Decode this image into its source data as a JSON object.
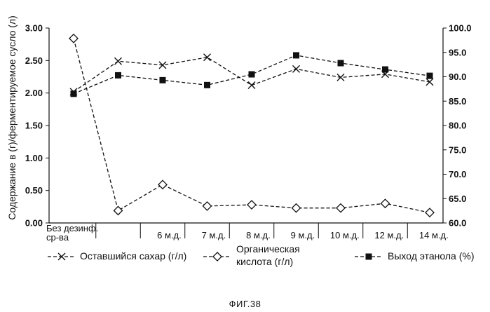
{
  "chart_data": {
    "type": "line",
    "categories": [
      "Без дезинф. ср-ва",
      "",
      "6 м.д.",
      "7 м.д.",
      "8 м.д.",
      "9 м.д.",
      "10 м.д.",
      "12 м.д.",
      "14 м.д."
    ],
    "category_display": [
      [
        "Без дезинф.",
        "ср-ва"
      ],
      [
        ""
      ],
      [
        "6 м.д."
      ],
      [
        "7 м.д."
      ],
      [
        "8 м.д."
      ],
      [
        "9 м.д."
      ],
      [
        "10 м.д."
      ],
      [
        "12 м.д."
      ],
      [
        "14 м.д."
      ]
    ],
    "ylabel": "Содержание в (г)/ферментируемое сусло (л)",
    "ylim": [
      0,
      3
    ],
    "y_ticks": [
      "0.00",
      "0.50",
      "1.00",
      "1.50",
      "2.00",
      "2.50",
      "3.00"
    ],
    "y2lim": [
      60,
      100
    ],
    "y2_ticks": [
      "60.0",
      "65.0",
      "70.0",
      "75.0",
      "80.0",
      "85.0",
      "90.0",
      "95.0",
      "100.0"
    ],
    "series": [
      {
        "name": "Оставшийся сахар (г/л)",
        "axis": "left",
        "marker": "x",
        "values": [
          2.02,
          2.49,
          2.43,
          2.55,
          2.12,
          2.37,
          2.24,
          2.29,
          2.17
        ]
      },
      {
        "name": "Органическая кислота (г/л)",
        "axis": "left",
        "marker": "diamond",
        "values": [
          2.84,
          0.19,
          0.59,
          0.26,
          0.28,
          0.23,
          0.23,
          0.3,
          0.16
        ]
      },
      {
        "name": "Выход этанола (%)",
        "axis": "right",
        "marker": "square",
        "values": [
          86.5,
          90.3,
          89.3,
          88.3,
          90.5,
          94.4,
          92.8,
          91.5,
          90.2
        ]
      }
    ],
    "legend": [
      {
        "label": "Оставшийся сахар (г/л)",
        "marker": "x"
      },
      {
        "label_lines": [
          "Органическая",
          "кислота (г/л)"
        ],
        "marker": "diamond"
      },
      {
        "label": "Выход этанола (%)",
        "marker": "square"
      }
    ],
    "legend_position": "bottom",
    "line_style": "dashed",
    "grid": false
  },
  "caption": "ФИГ.38"
}
